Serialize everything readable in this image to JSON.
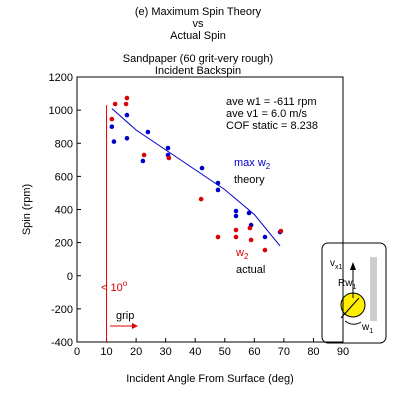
{
  "chart_data": {
    "type": "scatter",
    "title": [
      "(e) Maximum Spin Theory",
      "vs",
      "Actual Spin"
    ],
    "subtitle": [
      "Sandpaper (60 grit-very rough)",
      "Incident Backspin"
    ],
    "xlabel": "Incident Angle From Surface (deg)",
    "ylabel": "Spin (rpm)",
    "xlim": [
      0,
      90
    ],
    "ylim": [
      -400,
      1200
    ],
    "xticks": [
      0,
      10,
      20,
      30,
      40,
      50,
      60,
      70,
      80,
      90
    ],
    "yticks": [
      -400,
      -200,
      0,
      200,
      400,
      600,
      800,
      1000,
      1200
    ],
    "series": [
      {
        "color": "#0000cc",
        "style": "dot",
        "x": [
          11.8,
          12.5,
          16.9,
          16.9,
          22.3,
          24,
          30.8,
          30.8,
          42.3,
          47.7,
          47.7,
          53.8,
          53.8,
          58.2,
          58.9,
          63.6,
          68.7
        ],
        "y": [
          900,
          810,
          970,
          830,
          693,
          868,
          771,
          729,
          650,
          560,
          518,
          391,
          361,
          379,
          306,
          234,
          264
        ]
      },
      {
        "color": "#dd0000",
        "style": "dot",
        "x": [
          11.8,
          12.9,
          16.6,
          16.9,
          22.7,
          31.1,
          42,
          47.7,
          53.8,
          53.8,
          58.5,
          58.9,
          63.6,
          69
        ],
        "y": [
          946,
          1037,
          1037,
          1073,
          729,
          711,
          463,
          234,
          276,
          234,
          288,
          216,
          155,
          270
        ]
      },
      {
        "color": "#0000cc",
        "style": "line",
        "x": [
          11.8,
          20,
          30,
          40,
          50,
          60,
          68.7
        ],
        "y": [
          1010,
          880,
          760,
          640,
          520,
          370,
          180
        ]
      }
    ],
    "stats": [
      "ave w1 = -611 rpm",
      "ave v1 = 6.0 m/s",
      "COF static = 8.238"
    ],
    "theory_label": [
      "max w",
      "2",
      "theory"
    ],
    "actual_label": [
      "w",
      "2",
      "actual"
    ],
    "threshold": {
      "x": 10,
      "y": [
        -400,
        1030
      ],
      "color": "#dd0000",
      "label": [
        "< 10",
        "o"
      ],
      "arrow_label": "grip"
    },
    "diagram": {
      "v": "v",
      "v_sub": "x1",
      "r": "Rw",
      "r_sub": "1",
      "w": "w",
      "w_sub": "1"
    }
  }
}
